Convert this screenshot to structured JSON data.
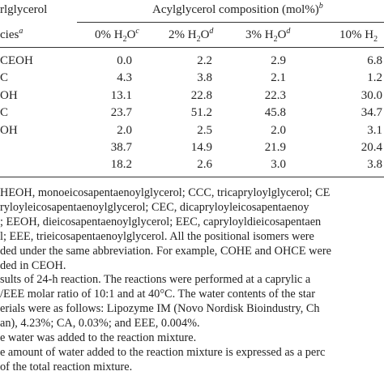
{
  "table": {
    "stub_header": [
      "rlglycerol",
      "cies"
    ],
    "stub_note": "a",
    "group_header": "Acylglycerol composition (mol%)",
    "group_note": "b",
    "columns": [
      {
        "text": "0% H",
        "sub": "2",
        "after": "O",
        "note": "c"
      },
      {
        "text": "2% H",
        "sub": "2",
        "after": "O",
        "note": "d"
      },
      {
        "text": "3% H",
        "sub": "2",
        "after": "O",
        "note": "d"
      },
      {
        "text": "10% H",
        "sub": "2"
      }
    ],
    "rows": [
      {
        "label": "CEOH",
        "values": [
          "0.0",
          "2.2",
          "2.9",
          "6.8"
        ]
      },
      {
        "label": "C",
        "values": [
          "4.3",
          "3.8",
          "2.1",
          "1.2"
        ]
      },
      {
        "label": "OH",
        "values": [
          "13.1",
          "22.8",
          "22.3",
          "30.0"
        ]
      },
      {
        "label": "C",
        "values": [
          "23.7",
          "51.2",
          "45.8",
          "34.7"
        ]
      },
      {
        "label": "OH",
        "values": [
          "2.0",
          "2.5",
          "2.0",
          "3.1"
        ]
      },
      {
        "label": null,
        "values": [
          "38.7",
          "14.9",
          "21.9",
          "20.4"
        ]
      },
      {
        "label": null,
        "values": [
          "18.2",
          "2.6",
          "3.0",
          "3.8"
        ]
      }
    ]
  },
  "footnotes": [
    "HEOH, monoeicosapentaenoylglycerol; CCC, tricapryloylglycerol; CE",
    "ryloyleicosapentaenoylglycerol; CEC, dicapryloyleicosapentaenoy",
    "; EEOH, dieicosapentaenoylglycerol; EEC, capryloyldieicosapentaen",
    "l; EEE, trieicosapentaenoylglycerol. All the positional isomers were",
    "ded under the same abbreviation. For example, COHE and OHCE were",
    "ded in CEOH.",
    "sults of 24-h reaction. The reactions were performed at a caprylic a",
    "/EEE molar ratio of 10:1 and at 40°C. The water contents of the star",
    "erials were as follows: Lipozyme IM (Novo Nordisk Bioindustry, Ch",
    "an), 4.23%; CA, 0.03%; and EEE, 0.004%.",
    "e water was added to the reaction mixture.",
    "e amount of water added to the reaction mixture is expressed as a perc",
    "of the total reaction mixture."
  ]
}
